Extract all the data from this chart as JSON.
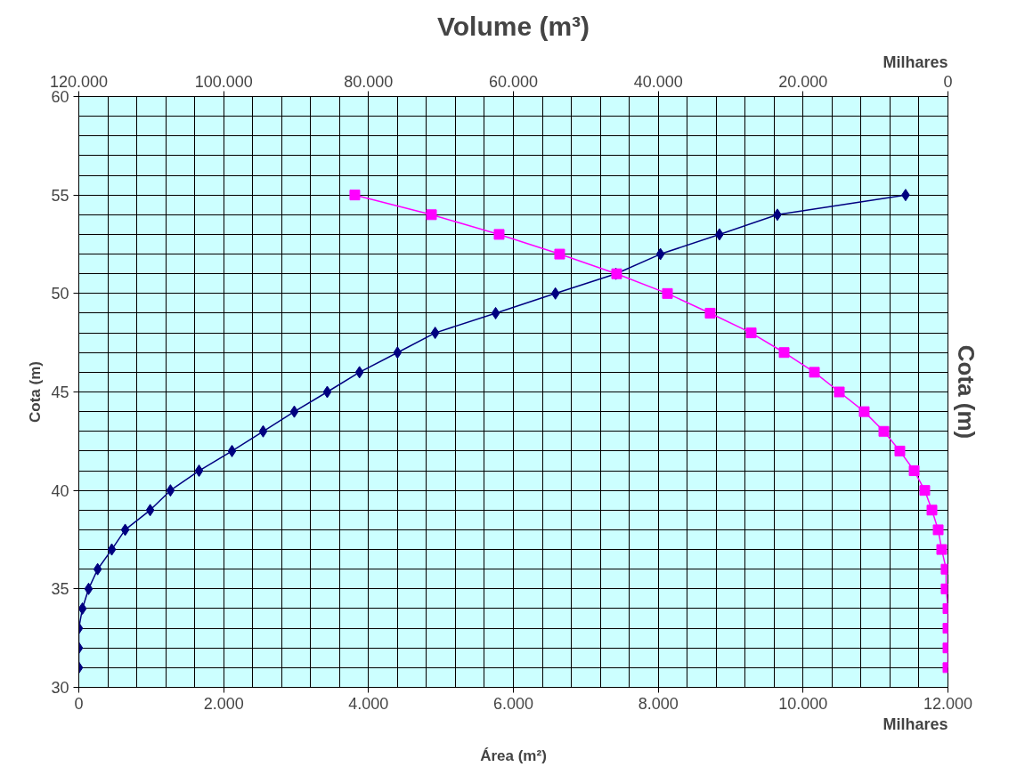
{
  "chart_data": {
    "type": "line",
    "xlabel": "Área (m²)",
    "ylabel": "Cota (m)",
    "y2label": "Cota (m)",
    "x2label": "Volume (m³)",
    "xlim": [
      0,
      12000
    ],
    "xticks": [
      {
        "value": 0,
        "label": "0"
      },
      {
        "value": 2000,
        "label": "2.000"
      },
      {
        "value": 4000,
        "label": "4.000"
      },
      {
        "value": 6000,
        "label": "6.000"
      },
      {
        "value": 8000,
        "label": "8.000"
      },
      {
        "value": 10000,
        "label": "10.000"
      },
      {
        "value": 12000,
        "label": "12.000"
      }
    ],
    "x2lim": [
      120000,
      0
    ],
    "x2ticks": [
      {
        "value": 120000,
        "label": "120.000"
      },
      {
        "value": 100000,
        "label": "100.000"
      },
      {
        "value": 80000,
        "label": "80.000"
      },
      {
        "value": 60000,
        "label": "60.000"
      },
      {
        "value": 40000,
        "label": "40.000"
      },
      {
        "value": 20000,
        "label": "20.000"
      },
      {
        "value": 0,
        "label": "0"
      }
    ],
    "ylim": [
      30,
      60
    ],
    "yticks": [
      30,
      35,
      40,
      45,
      50,
      55,
      60
    ],
    "grid": true,
    "annotations": [
      "Milhares",
      "Milhares"
    ],
    "series": [
      {
        "color": "#000080",
        "marker": "diamond",
        "x": [
          0,
          0,
          0,
          50,
          135,
          260,
          455,
          640,
          985,
          1265,
          1660,
          2115,
          2545,
          2975,
          3430,
          3875,
          4400,
          4920,
          5755,
          6580,
          7415,
          8030,
          8845,
          9645,
          11415
        ],
        "values": [
          31,
          32,
          33,
          34,
          35,
          36,
          37,
          38,
          39,
          40,
          41,
          42,
          43,
          44,
          45,
          46,
          47,
          48,
          49,
          50,
          51,
          52,
          53,
          54,
          55
        ]
      },
      {
        "color": "#ff00ff",
        "marker": "square",
        "axis": "x2",
        "x": [
          0,
          0,
          0,
          0,
          250,
          250,
          860,
          1350,
          2210,
          3200,
          4670,
          6640,
          8850,
          11560,
          15000,
          18440,
          22620,
          27170,
          32830,
          38730,
          45740,
          53610,
          61970,
          71310,
          81890
        ],
        "values": [
          31,
          32,
          33,
          34,
          35,
          36,
          37,
          38,
          39,
          40,
          41,
          42,
          43,
          44,
          45,
          46,
          47,
          48,
          49,
          50,
          51,
          52,
          53,
          54,
          55
        ]
      }
    ]
  }
}
